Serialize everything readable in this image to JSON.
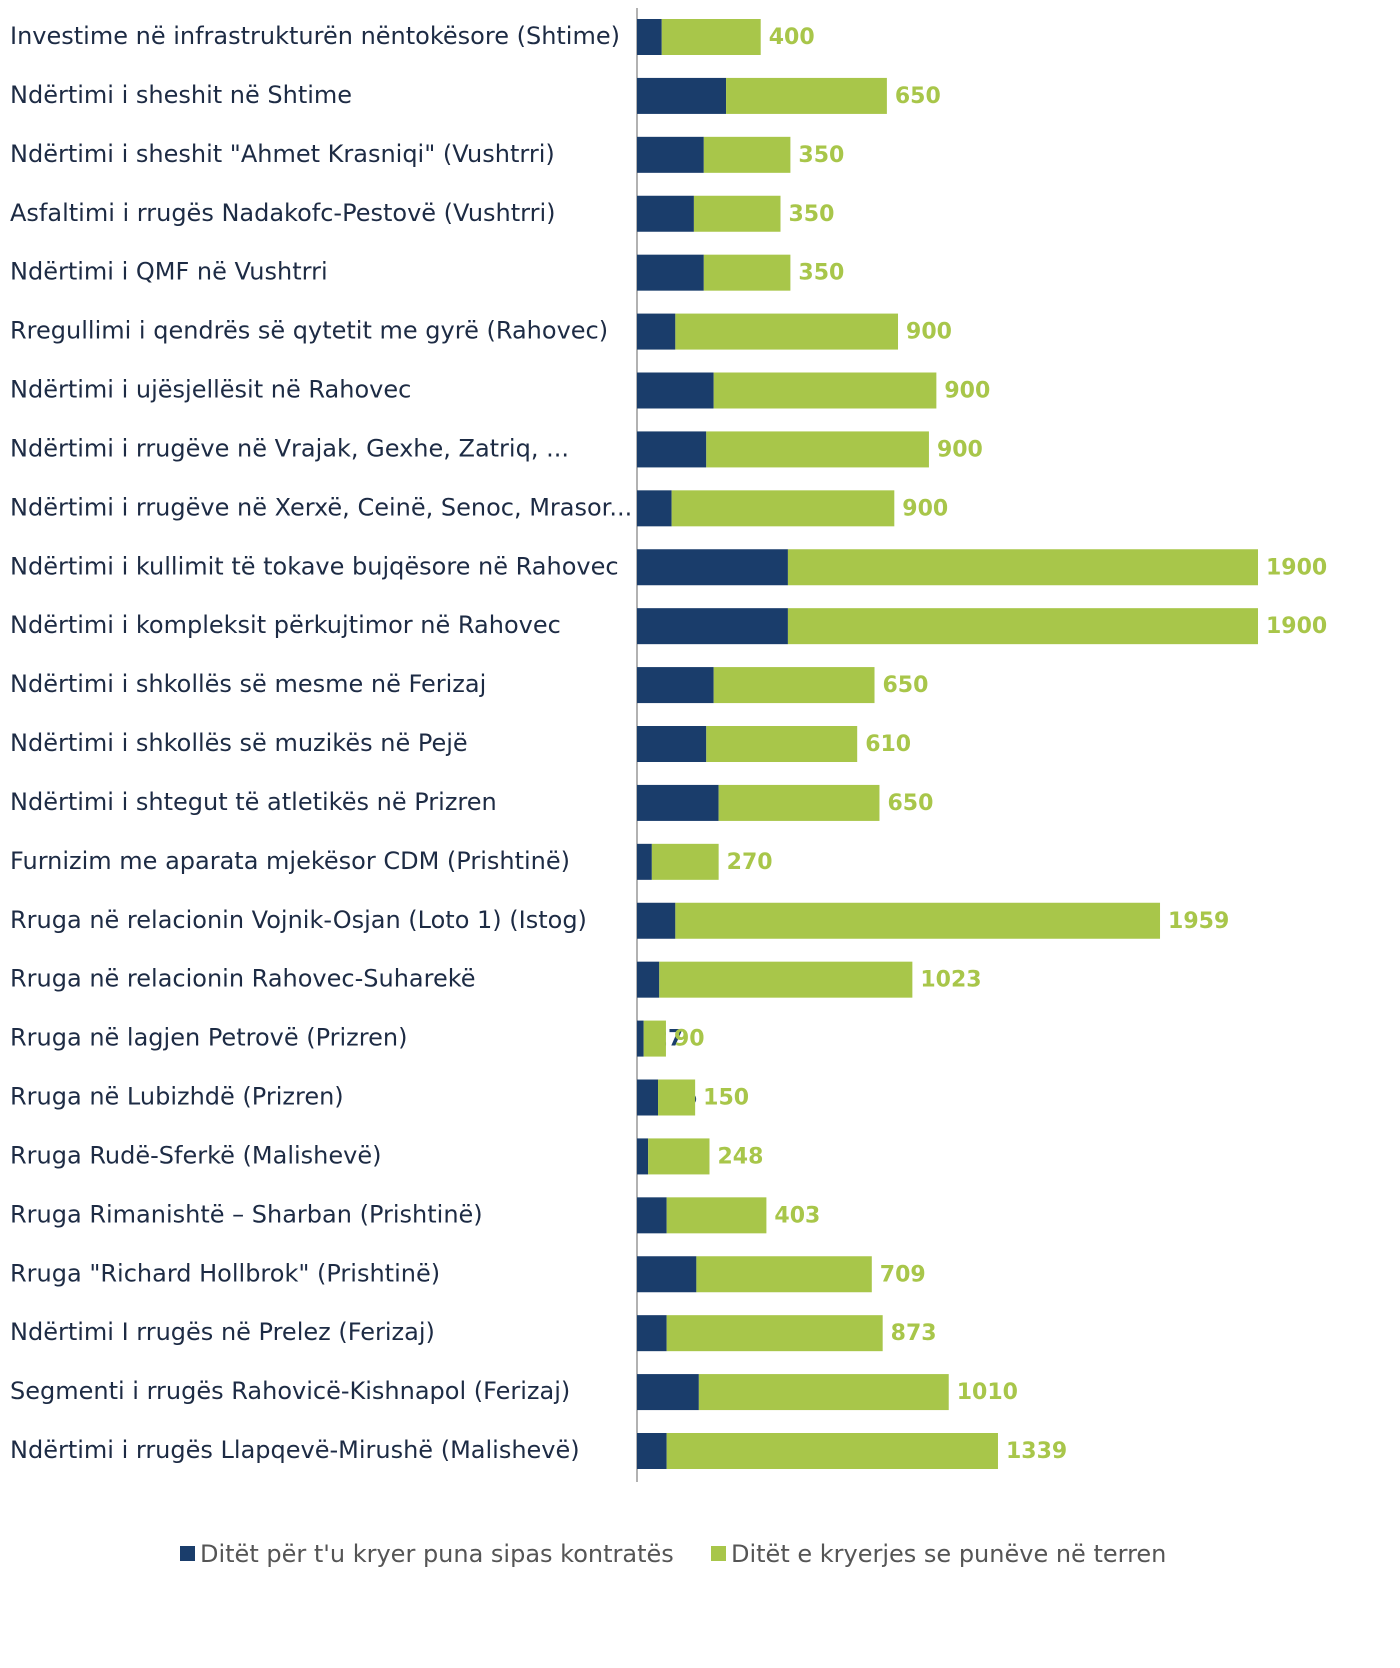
{
  "chart_data": {
    "type": "stacked_bar_horizontal",
    "categories": [
      "Investime në infrastrukturën nëntokësore (Shtime)",
      "Ndërtimi i sheshit në Shtime",
      "Ndërtimi i sheshit \"Ahmet Krasniqi\" (Vushtrri)",
      "Asfaltimi i rrugës Nadakofc-Pestovë (Vushtrri)",
      "Ndërtimi i QMF në Vushtrri",
      "Rregullimi i qendrës së qytetit me gyrë (Rahovec)",
      "Ndërtimi i ujësjellësit në Rahovec",
      "Ndërtimi i rrugëve në Vrajak, Gexhe, Zatriq, ...",
      "Ndërtimi i rrugëve në Xerxë, Ceinë, Senoc, Mrasor...",
      "Ndërtimi i kullimit të tokave bujqësore në Rahovec",
      "Ndërtimi i kompleksit përkujtimor në Rahovec",
      "Ndërtimi i shkollës së mesme në Ferizaj",
      "Ndërtimi i shkollës së muzikës në Pejë",
      "Ndërtimi i shtegut të atletikës në Prizren",
      "Furnizim me aparata mjekësor CDM (Prishtinë)",
      "Rruga në relacionin Vojnik-Osjan (Loto 1) (Istog)",
      "Rruga në relacionin Rahovec-Suharekë",
      "Rruga në lagjen Petrovë (Prizren)",
      "Rruga në Lubizhdë (Prizren)",
      "Rruga Rudë-Sferkë (Malishevë)",
      "Rruga Rimanishtë – Sharban (Prishtinë)",
      "Rruga \"Richard Hollbrok\" (Prishtinë)",
      "Ndërtimi I rrugës në Prelez (Ferizaj)",
      "Segmenti i rrugës Rahovicë-Kishnapol (Ferizaj)",
      "Ndërtimi i rrugës Llapqevë-Mirushë (Malishevë)"
    ],
    "series": [
      {
        "name": "Ditët për t'u kryer puna sipas kontratës",
        "color": "#1a3d6b",
        "values": [
          100,
          360,
          270,
          230,
          270,
          155,
          310,
          280,
          140,
          610,
          610,
          310,
          280,
          330,
          60,
          155,
          90,
          27,
          85,
          45,
          120,
          240,
          120,
          250,
          120
        ]
      },
      {
        "name": "Ditët e kryerjes se punëve në terren",
        "color": "#a8c64a",
        "values": [
          400,
          650,
          350,
          350,
          350,
          900,
          900,
          900,
          900,
          1900,
          1900,
          650,
          610,
          650,
          270,
          1959,
          1023,
          90,
          150,
          248,
          403,
          709,
          873,
          1010,
          1339
        ]
      }
    ]
  }
}
